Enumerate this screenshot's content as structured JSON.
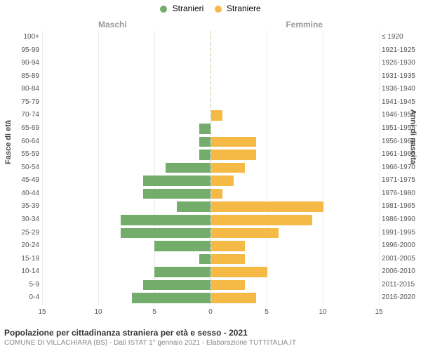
{
  "chart": {
    "type": "population-pyramid",
    "background_color": "#ffffff",
    "grid_color": "#eceaea",
    "center_line_color": "#d1c495",
    "legend": {
      "male": {
        "label": "Stranieri",
        "color": "#73ac6b"
      },
      "female": {
        "label": "Straniere",
        "color": "#f5b946"
      }
    },
    "side_labels": {
      "male": "Maschi",
      "female": "Femmine",
      "color": "#999999",
      "fontsize": 12
    },
    "y_left_title": "Fasce di età",
    "y_right_title": "Anni di nascita",
    "x_axis": {
      "max": 15,
      "ticks": [
        0,
        5,
        10,
        15
      ],
      "tick_labels": [
        "0",
        "5",
        "10",
        "15"
      ]
    },
    "age_bands": [
      {
        "age": "100+",
        "birth": "≤ 1920",
        "male": 0,
        "female": 0
      },
      {
        "age": "95-99",
        "birth": "1921-1925",
        "male": 0,
        "female": 0
      },
      {
        "age": "90-94",
        "birth": "1926-1930",
        "male": 0,
        "female": 0
      },
      {
        "age": "85-89",
        "birth": "1931-1935",
        "male": 0,
        "female": 0
      },
      {
        "age": "80-84",
        "birth": "1936-1940",
        "male": 0,
        "female": 0
      },
      {
        "age": "75-79",
        "birth": "1941-1945",
        "male": 0,
        "female": 0
      },
      {
        "age": "70-74",
        "birth": "1946-1950",
        "male": 0,
        "female": 1
      },
      {
        "age": "65-69",
        "birth": "1951-1955",
        "male": 1,
        "female": 0
      },
      {
        "age": "60-64",
        "birth": "1956-1960",
        "male": 1,
        "female": 4
      },
      {
        "age": "55-59",
        "birth": "1961-1965",
        "male": 1,
        "female": 4
      },
      {
        "age": "50-54",
        "birth": "1966-1970",
        "male": 4,
        "female": 3
      },
      {
        "age": "45-49",
        "birth": "1971-1975",
        "male": 6,
        "female": 2
      },
      {
        "age": "40-44",
        "birth": "1976-1980",
        "male": 6,
        "female": 1
      },
      {
        "age": "35-39",
        "birth": "1981-1985",
        "male": 3,
        "female": 10
      },
      {
        "age": "30-34",
        "birth": "1986-1990",
        "male": 8,
        "female": 9
      },
      {
        "age": "25-29",
        "birth": "1991-1995",
        "male": 8,
        "female": 6
      },
      {
        "age": "20-24",
        "birth": "1996-2000",
        "male": 5,
        "female": 3
      },
      {
        "age": "15-19",
        "birth": "2001-2005",
        "male": 1,
        "female": 3
      },
      {
        "age": "10-14",
        "birth": "2006-2010",
        "male": 5,
        "female": 5
      },
      {
        "age": "5-9",
        "birth": "2011-2015",
        "male": 6,
        "female": 3
      },
      {
        "age": "0-4",
        "birth": "2016-2020",
        "male": 7,
        "female": 4
      }
    ],
    "footer": {
      "title": "Popolazione per cittadinanza straniera per età e sesso - 2021",
      "title_color": "#333333",
      "title_fontsize": 12,
      "subtitle": "COMUNE DI VILLACHIARA (BS) - Dati ISTAT 1° gennaio 2021 - Elaborazione TUTTITALIA.IT",
      "subtitle_color": "#888888",
      "subtitle_fontsize": 10
    },
    "label_fontsize": 10,
    "label_color": "#555555"
  }
}
